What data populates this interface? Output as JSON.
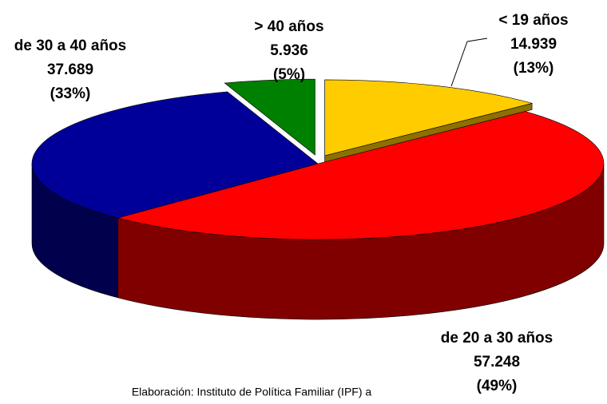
{
  "chart_data": {
    "type": "pie3d",
    "categories": [
      "< 19 años",
      "de 20 a 30 años",
      "de 30 a 40 años",
      "> 40 años"
    ],
    "values": [
      14939,
      57248,
      37689,
      5936
    ],
    "value_labels": [
      "14.939",
      "57.248",
      "37.689",
      "5.936"
    ],
    "percentages": [
      13,
      49,
      33,
      5
    ],
    "percentage_labels": [
      "(13%)",
      "(49%)",
      "(33%)",
      "(5%)"
    ],
    "colors": [
      "#ffcc00",
      "#ff0000",
      "#000099",
      "#008000"
    ],
    "exploded": [
      true,
      false,
      false,
      true
    ],
    "source": "Elaboración: Instituto de Política Familiar (IPF) a"
  }
}
